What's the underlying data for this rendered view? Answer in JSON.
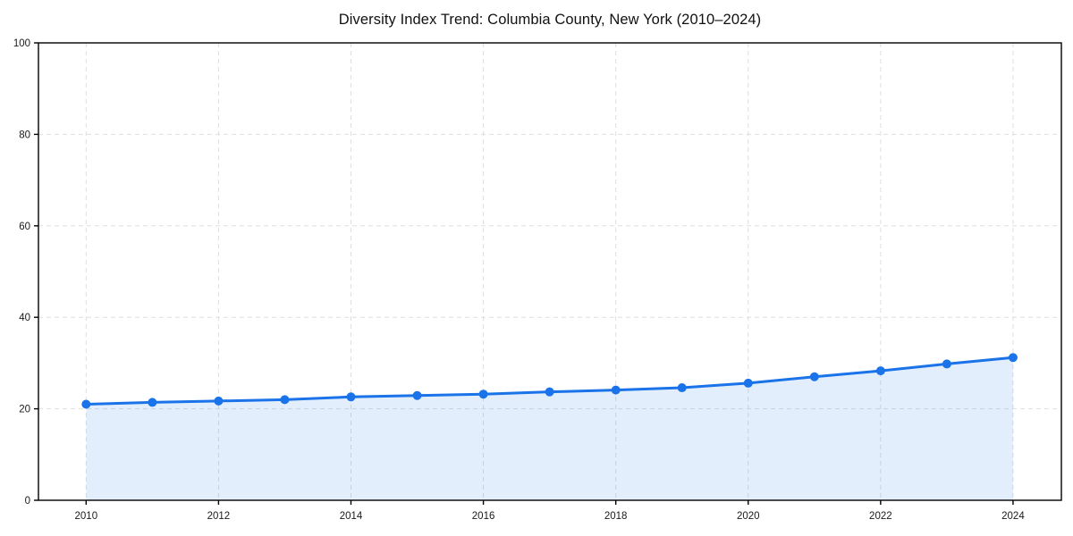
{
  "chart_data": {
    "type": "line",
    "title": "Diversity Index Trend: Columbia County, New York (2010–2024)",
    "series_name": "Diversity Index",
    "x": [
      2010,
      2011,
      2012,
      2013,
      2014,
      2015,
      2016,
      2017,
      2018,
      2019,
      2020,
      2021,
      2022,
      2023,
      2024
    ],
    "values": [
      21.0,
      21.4,
      21.7,
      22.0,
      22.6,
      22.9,
      23.2,
      23.7,
      24.1,
      24.6,
      25.6,
      27.0,
      28.3,
      29.8,
      31.2
    ],
    "xlabel": "",
    "ylabel": "",
    "xlim": [
      2009.28,
      2024.73
    ],
    "ylim": [
      0,
      100
    ],
    "xticks": [
      2010,
      2012,
      2014,
      2016,
      2018,
      2020,
      2022,
      2024
    ],
    "yticks": [
      0,
      20,
      40,
      60,
      80,
      100
    ],
    "grid": true,
    "grid_style": "dashed",
    "legend": false,
    "marker": "circle",
    "colors": {
      "line": "#1a73e8",
      "fill_opacity": 0.12,
      "grid": "#dedede",
      "frame": "#000000",
      "tick_label": "#1a1a1a",
      "title": "#111111",
      "background": "#ffffff"
    }
  }
}
